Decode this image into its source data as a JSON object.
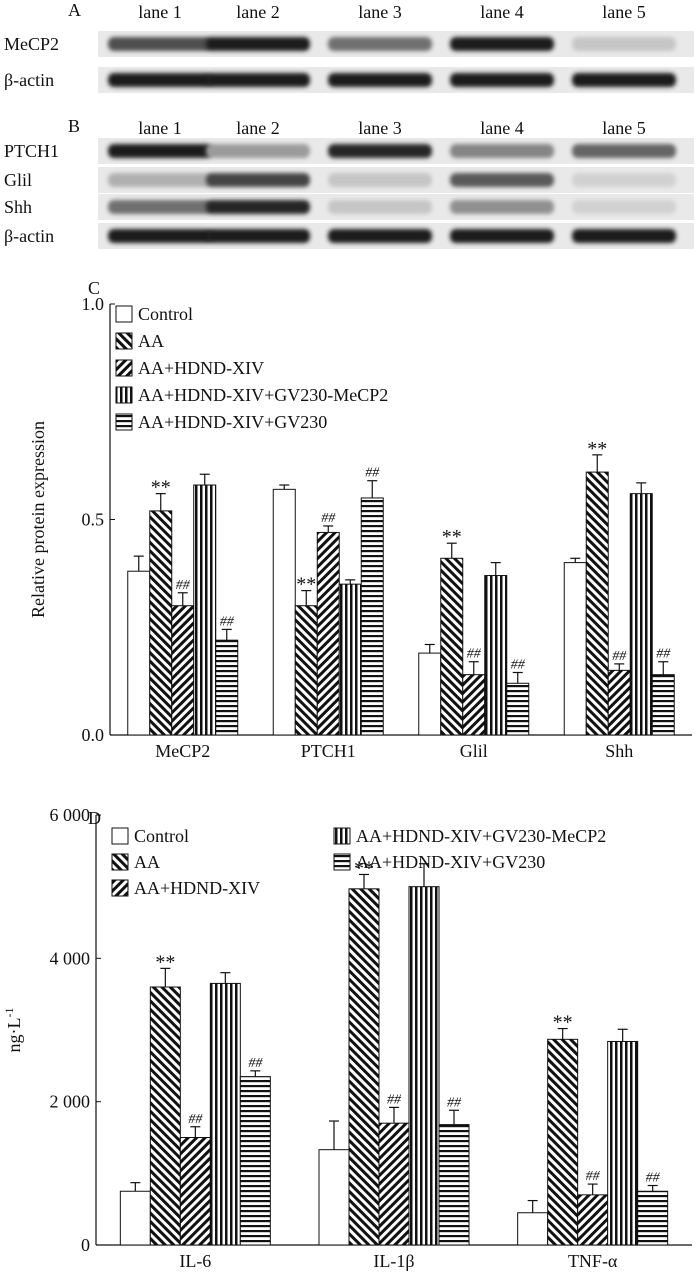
{
  "panels": {
    "a": {
      "label": "A",
      "lanes": [
        "lane 1",
        "lane 2",
        "lane 3",
        "lane 4",
        "lane 5"
      ],
      "rows": [
        {
          "name": "MeCP2",
          "intensity": [
            0.7,
            0.95,
            0.55,
            0.95,
            0.15
          ]
        },
        {
          "name": "β-actin",
          "intensity": [
            0.95,
            0.95,
            0.95,
            0.95,
            0.95
          ]
        }
      ]
    },
    "b": {
      "label": "B",
      "lanes": [
        "lane 1",
        "lane 2",
        "lane 3",
        "lane 4",
        "lane 5"
      ],
      "rows": [
        {
          "name": "PTCH1",
          "intensity": [
            0.95,
            0.35,
            0.9,
            0.45,
            0.6
          ]
        },
        {
          "name": "Glil",
          "intensity": [
            0.25,
            0.75,
            0.15,
            0.65,
            0.1
          ]
        },
        {
          "name": "Shh",
          "intensity": [
            0.55,
            0.9,
            0.15,
            0.4,
            0.1
          ]
        },
        {
          "name": "β-actin",
          "intensity": [
            0.95,
            0.95,
            0.95,
            0.95,
            0.95
          ]
        }
      ]
    },
    "c": {
      "label": "C"
    },
    "d": {
      "label": "D"
    }
  },
  "chart_data": [
    {
      "type": "bar",
      "panel": "C",
      "ylabel": "Relative protein expression",
      "ylim": [
        0,
        1.0
      ],
      "yticks": [
        "0.0",
        "0.5",
        "1.0"
      ],
      "categories": [
        "MeCP2",
        "PTCH1",
        "Glil",
        "Shh"
      ],
      "legend_position": "top-left",
      "series": [
        {
          "name": "Control",
          "pattern": "blank",
          "values": [
            0.38,
            0.57,
            0.19,
            0.4
          ],
          "errors": [
            0.035,
            0.01,
            0.02,
            0.01
          ],
          "marks": [
            "",
            "",
            "",
            ""
          ]
        },
        {
          "name": "AA",
          "pattern": "backslash",
          "values": [
            0.52,
            0.3,
            0.41,
            0.61
          ],
          "errors": [
            0.04,
            0.035,
            0.035,
            0.04
          ],
          "marks": [
            "**",
            "**",
            "**",
            "**"
          ]
        },
        {
          "name": "AA+HDND-XIV",
          "pattern": "slash",
          "values": [
            0.3,
            0.47,
            0.14,
            0.15
          ],
          "errors": [
            0.03,
            0.015,
            0.03,
            0.015
          ],
          "marks": [
            "##",
            "##",
            "##",
            "##"
          ]
        },
        {
          "name": "AA+HDND-XIV+GV230-MeCP2",
          "pattern": "vertical",
          "values": [
            0.58,
            0.35,
            0.37,
            0.56
          ],
          "errors": [
            0.025,
            0.01,
            0.03,
            0.025
          ],
          "marks": [
            "",
            "",
            "",
            ""
          ]
        },
        {
          "name": "AA+HDND-XIV+GV230",
          "pattern": "horizontal",
          "values": [
            0.22,
            0.55,
            0.12,
            0.14
          ],
          "errors": [
            0.025,
            0.04,
            0.025,
            0.03
          ],
          "marks": [
            "##",
            "##",
            "##",
            "##"
          ]
        }
      ]
    },
    {
      "type": "bar",
      "panel": "D",
      "ylabel": "ng·L",
      "ylabel_sup": "-1",
      "ylim": [
        0,
        6000
      ],
      "yticks": [
        "0",
        "2 000",
        "4 000",
        "6 000"
      ],
      "categories": [
        "IL-6",
        "IL-1β",
        "TNF-α"
      ],
      "legend_position": "top",
      "series": [
        {
          "name": "Control",
          "pattern": "blank",
          "values": [
            750,
            1330,
            450
          ],
          "errors": [
            120,
            400,
            170
          ],
          "marks": [
            "",
            "",
            ""
          ]
        },
        {
          "name": "AA",
          "pattern": "backslash",
          "values": [
            3600,
            4970,
            2870
          ],
          "errors": [
            260,
            200,
            150
          ],
          "marks": [
            "**",
            "**",
            "**"
          ]
        },
        {
          "name": "AA+HDND-XIV",
          "pattern": "slash",
          "values": [
            1500,
            1700,
            700
          ],
          "errors": [
            150,
            220,
            150
          ],
          "marks": [
            "##",
            "##",
            "##"
          ]
        },
        {
          "name": "AA+HDND-XIV+GV230-MeCP2",
          "pattern": "vertical",
          "values": [
            3650,
            5000,
            2840
          ],
          "errors": [
            150,
            320,
            170
          ],
          "marks": [
            "",
            "",
            ""
          ]
        },
        {
          "name": "AA+HDND-XIV+GV230",
          "pattern": "horizontal",
          "values": [
            2350,
            1680,
            750
          ],
          "errors": [
            80,
            200,
            80
          ],
          "marks": [
            "##",
            "##",
            "##"
          ]
        }
      ]
    }
  ]
}
